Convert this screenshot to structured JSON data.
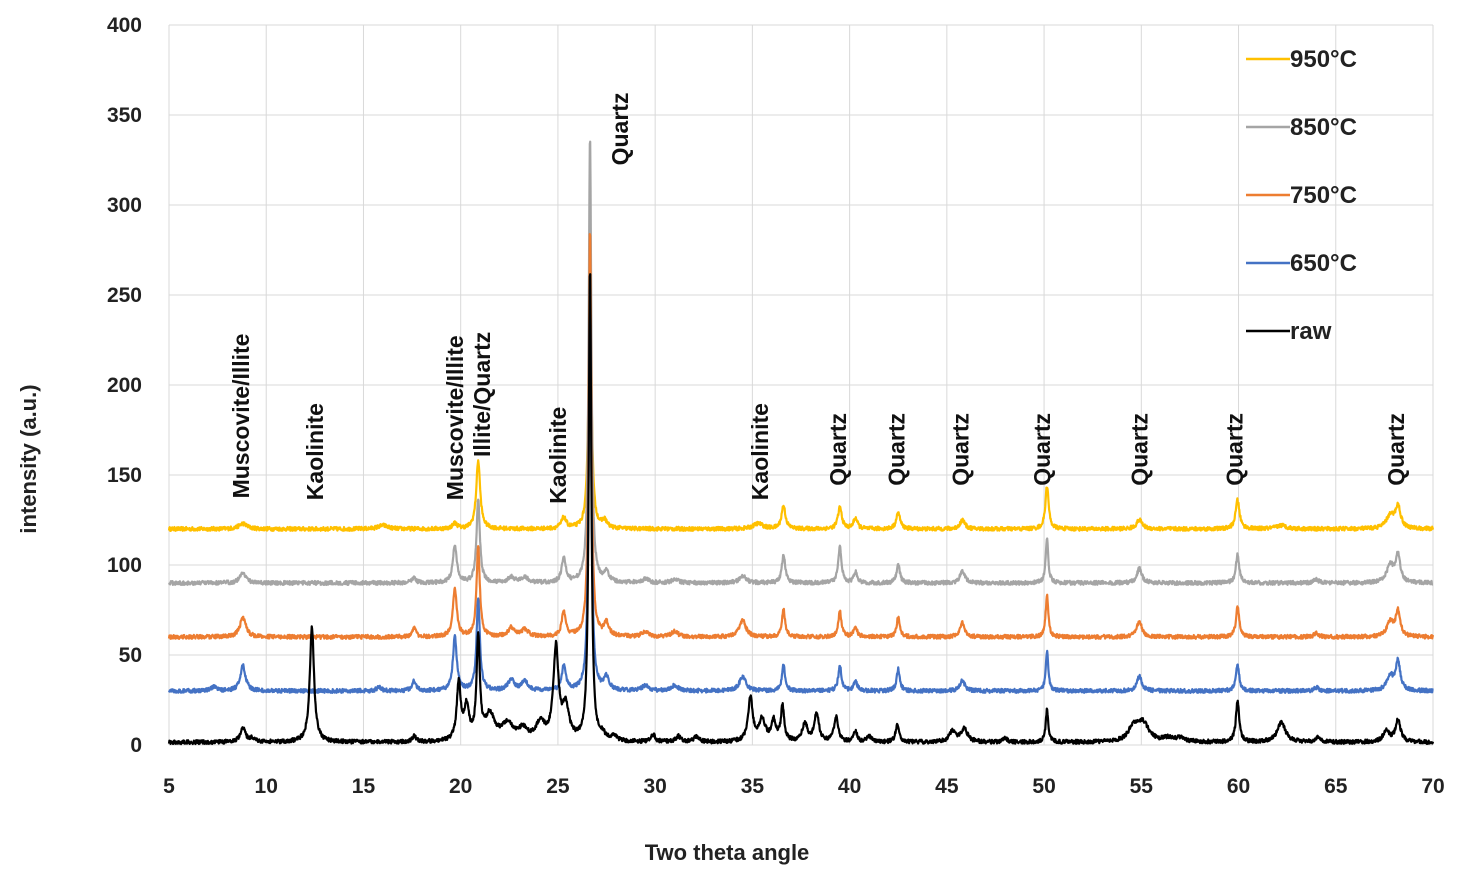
{
  "chart_data": {
    "type": "line",
    "title": "",
    "xlabel": "Two theta angle",
    "ylabel": "intensity (a.u.)",
    "xlim": [
      5,
      70
    ],
    "ylim": [
      0,
      400
    ],
    "xticks": [
      5,
      10,
      15,
      20,
      25,
      30,
      35,
      40,
      45,
      50,
      55,
      60,
      65,
      70
    ],
    "yticks": [
      0,
      50,
      100,
      150,
      200,
      250,
      300,
      350,
      400
    ],
    "grid": true,
    "legend_position": "top-right",
    "series": [
      {
        "name": "950°C",
        "color": "#FFC000",
        "baseline": 120,
        "peaks": [
          [
            8.8,
            3,
            0.25
          ],
          [
            16,
            2,
            0.3
          ],
          [
            20.9,
            38,
            0.12
          ],
          [
            19.7,
            3,
            0.15
          ],
          [
            25.3,
            6,
            0.15
          ],
          [
            26.65,
            140,
            0.09
          ],
          [
            27.4,
            4,
            0.15
          ],
          [
            35.3,
            3,
            0.3
          ],
          [
            36.6,
            13,
            0.12
          ],
          [
            39.5,
            12,
            0.12
          ],
          [
            40.3,
            6,
            0.12
          ],
          [
            42.5,
            9,
            0.12
          ],
          [
            45.8,
            5,
            0.15
          ],
          [
            50.15,
            24,
            0.1
          ],
          [
            54.9,
            5,
            0.18
          ],
          [
            59.95,
            16,
            0.12
          ],
          [
            62.2,
            2,
            0.3
          ],
          [
            67.8,
            7,
            0.25
          ],
          [
            68.2,
            12,
            0.16
          ]
        ]
      },
      {
        "name": "850°C",
        "color": "#A5A5A5",
        "baseline": 90,
        "peaks": [
          [
            8.8,
            6,
            0.18
          ],
          [
            17.6,
            3,
            0.12
          ],
          [
            19.7,
            21,
            0.12
          ],
          [
            20.9,
            47,
            0.1
          ],
          [
            22.6,
            3,
            0.2
          ],
          [
            23.3,
            3,
            0.2
          ],
          [
            25.3,
            14,
            0.12
          ],
          [
            26.65,
            248,
            0.08
          ],
          [
            27.5,
            5,
            0.15
          ],
          [
            29.5,
            2,
            0.2
          ],
          [
            31,
            2,
            0.2
          ],
          [
            34.5,
            4,
            0.2
          ],
          [
            36.6,
            16,
            0.1
          ],
          [
            39.5,
            20,
            0.1
          ],
          [
            40.3,
            6,
            0.1
          ],
          [
            42.5,
            10,
            0.1
          ],
          [
            45.8,
            7,
            0.14
          ],
          [
            50.15,
            24,
            0.08
          ],
          [
            54.9,
            8,
            0.15
          ],
          [
            59.95,
            16,
            0.1
          ],
          [
            64,
            2,
            0.15
          ],
          [
            67.8,
            10,
            0.2
          ],
          [
            68.2,
            15,
            0.14
          ]
        ]
      },
      {
        "name": "750°C",
        "color": "#ED7D31",
        "baseline": 60,
        "peaks": [
          [
            8.8,
            11,
            0.18
          ],
          [
            17.6,
            5,
            0.12
          ],
          [
            19.7,
            27,
            0.12
          ],
          [
            20.9,
            50,
            0.1
          ],
          [
            22.6,
            5,
            0.2
          ],
          [
            23.3,
            4,
            0.2
          ],
          [
            25.3,
            14,
            0.12
          ],
          [
            26.65,
            226,
            0.08
          ],
          [
            27.5,
            7,
            0.15
          ],
          [
            29.5,
            3,
            0.2
          ],
          [
            31,
            3,
            0.2
          ],
          [
            34.5,
            9,
            0.2
          ],
          [
            36.6,
            15,
            0.1
          ],
          [
            39.5,
            14,
            0.1
          ],
          [
            40.3,
            6,
            0.1
          ],
          [
            42.5,
            11,
            0.1
          ],
          [
            45.8,
            8,
            0.14
          ],
          [
            50.15,
            23,
            0.08
          ],
          [
            54.9,
            9,
            0.15
          ],
          [
            59.95,
            17,
            0.1
          ],
          [
            64,
            2,
            0.15
          ],
          [
            67.8,
            8,
            0.2
          ],
          [
            68.2,
            14,
            0.14
          ]
        ]
      },
      {
        "name": "650°C",
        "color": "#4472C4",
        "baseline": 30,
        "peaks": [
          [
            7.3,
            2,
            0.2
          ],
          [
            8.8,
            14,
            0.16
          ],
          [
            15.8,
            2,
            0.15
          ],
          [
            17.6,
            6,
            0.12
          ],
          [
            19.7,
            30,
            0.12
          ],
          [
            20.9,
            52,
            0.1
          ],
          [
            22.6,
            6,
            0.2
          ],
          [
            23.3,
            5,
            0.2
          ],
          [
            25.3,
            14,
            0.12
          ],
          [
            26.65,
            226,
            0.08
          ],
          [
            27.5,
            7,
            0.15
          ],
          [
            29.5,
            3,
            0.2
          ],
          [
            31,
            3,
            0.2
          ],
          [
            34.5,
            8,
            0.2
          ],
          [
            36.6,
            14,
            0.1
          ],
          [
            39.5,
            14,
            0.1
          ],
          [
            40.3,
            6,
            0.1
          ],
          [
            42.5,
            12,
            0.1
          ],
          [
            45.8,
            6,
            0.14
          ],
          [
            50.15,
            22,
            0.08
          ],
          [
            54.9,
            8,
            0.15
          ],
          [
            59.95,
            15,
            0.1
          ],
          [
            64,
            2,
            0.15
          ],
          [
            67.8,
            8,
            0.2
          ],
          [
            68.2,
            16,
            0.14
          ]
        ]
      },
      {
        "name": "raw",
        "color": "#000000",
        "baseline": 1.5,
        "peaks": [
          [
            8.8,
            8,
            0.15
          ],
          [
            9.3,
            2,
            0.2
          ],
          [
            12.35,
            64,
            0.13
          ],
          [
            17.6,
            3,
            0.12
          ],
          [
            19.9,
            32,
            0.12
          ],
          [
            20.3,
            18,
            0.15
          ],
          [
            20.9,
            56,
            0.1
          ],
          [
            21.5,
            14,
            0.3
          ],
          [
            22.4,
            9,
            0.35
          ],
          [
            23.2,
            6,
            0.3
          ],
          [
            24.1,
            10,
            0.25
          ],
          [
            24.9,
            51,
            0.16
          ],
          [
            25.4,
            18,
            0.2
          ],
          [
            26.65,
            262,
            0.08
          ],
          [
            27.3,
            3,
            0.15
          ],
          [
            27.9,
            3,
            0.15
          ],
          [
            29.9,
            4,
            0.12
          ],
          [
            31.2,
            3,
            0.15
          ],
          [
            32.1,
            3,
            0.15
          ],
          [
            34.9,
            24,
            0.14
          ],
          [
            35.5,
            12,
            0.2
          ],
          [
            36.1,
            11,
            0.14
          ],
          [
            36.55,
            19,
            0.1
          ],
          [
            37.7,
            10,
            0.16
          ],
          [
            38.3,
            16,
            0.14
          ],
          [
            39.3,
            14,
            0.12
          ],
          [
            40.3,
            6,
            0.1
          ],
          [
            41,
            3,
            0.15
          ],
          [
            42.45,
            10,
            0.1
          ],
          [
            45.3,
            6,
            0.2
          ],
          [
            45.9,
            7,
            0.2
          ],
          [
            48,
            2,
            0.15
          ],
          [
            50.15,
            18,
            0.08
          ],
          [
            54.6,
            8,
            0.3
          ],
          [
            55.1,
            10,
            0.35
          ],
          [
            56.4,
            2,
            0.3
          ],
          [
            57,
            2,
            0.3
          ],
          [
            59.95,
            23,
            0.1
          ],
          [
            62.2,
            11,
            0.25
          ],
          [
            64.1,
            3,
            0.15
          ],
          [
            67.6,
            6,
            0.2
          ],
          [
            68.2,
            12,
            0.16
          ]
        ]
      }
    ],
    "annotations": [
      {
        "text": "Muscovite/Illite",
        "x": 8.7,
        "y": 137
      },
      {
        "text": "Kaolinite",
        "x": 12.5,
        "y": 136
      },
      {
        "text": "Muscovite/Illite",
        "x": 19.7,
        "y": 136
      },
      {
        "text": "Illite/Quartz",
        "x": 21.1,
        "y": 160
      },
      {
        "text": "Kaolinite",
        "x": 25.0,
        "y": 134
      },
      {
        "text": "Quartz",
        "x": 28.2,
        "y": 322
      },
      {
        "text": "Kaolinite",
        "x": 35.4,
        "y": 136
      },
      {
        "text": "Quartz",
        "x": 39.4,
        "y": 144
      },
      {
        "text": "Quartz",
        "x": 42.4,
        "y": 144
      },
      {
        "text": "Quartz",
        "x": 45.7,
        "y": 144
      },
      {
        "text": "Quartz",
        "x": 49.9,
        "y": 144
      },
      {
        "text": "Quartz",
        "x": 54.9,
        "y": 144
      },
      {
        "text": "Quartz",
        "x": 59.8,
        "y": 144
      },
      {
        "text": "Quartz",
        "x": 68.1,
        "y": 144
      }
    ]
  }
}
